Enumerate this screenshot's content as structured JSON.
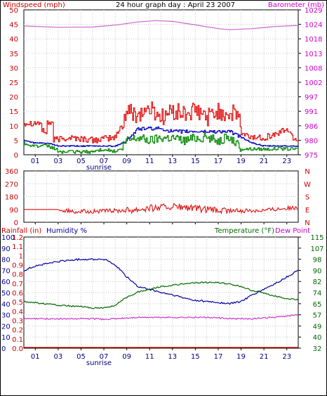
{
  "chart_data": [
    {
      "type": "line",
      "title": "24 hour graph day : April 23 2007",
      "x_ticks": [
        "01",
        "03",
        "05",
        "07",
        "09",
        "11",
        "13",
        "15",
        "17",
        "19",
        "21",
        "23"
      ],
      "x_annotation": "sunrise",
      "left_axis": {
        "label": "Windspeed (mph)",
        "range": [
          0,
          50
        ],
        "ticks": [
          "0",
          "5",
          "10",
          "15",
          "20",
          "25",
          "30",
          "35",
          "40",
          "45",
          "50"
        ]
      },
      "right_axis": {
        "label": "Barometer (mb)",
        "range": [
          975,
          1029
        ],
        "ticks": [
          "975",
          "980",
          "986",
          "991",
          "997",
          "1002",
          "1008",
          "1013",
          "1018",
          "1024",
          "1029"
        ]
      },
      "grid": true,
      "series": [
        {
          "color": "#cc66cc",
          "axis": "right",
          "x": [
            0,
            3,
            6,
            8,
            10,
            11.5,
            13,
            15,
            17,
            18,
            20,
            22,
            24
          ],
          "y": [
            1023,
            1022.5,
            1022.6,
            1023.3,
            1024.5,
            1025,
            1024.7,
            1023.4,
            1022,
            1021.6,
            1022,
            1022.8,
            1023.2
          ]
        },
        {
          "color": "#e01010",
          "axis": "left",
          "x": [
            0,
            1.5,
            1.5,
            2,
            2,
            2.5,
            2.5,
            4,
            6,
            8,
            8.5,
            9,
            10,
            11,
            12,
            13,
            14,
            15,
            16,
            17,
            18,
            18.8,
            19,
            20,
            21,
            22,
            23,
            23.5,
            24
          ],
          "y": [
            11,
            11,
            8,
            8,
            11,
            11,
            5,
            6,
            5,
            6,
            10,
            15,
            14,
            16,
            13,
            15,
            14,
            15,
            13,
            15,
            14,
            14,
            7,
            6,
            6,
            7,
            9,
            6,
            5
          ]
        },
        {
          "color": "#0000bb",
          "axis": "left",
          "x": [
            0,
            1,
            2,
            3,
            4,
            5,
            6,
            7,
            8,
            9,
            10,
            11,
            12,
            13,
            14,
            15,
            16,
            17,
            18,
            19,
            20,
            21,
            22,
            23,
            24
          ],
          "y": [
            5,
            4,
            4,
            3,
            3,
            3,
            3,
            3,
            3,
            5,
            9,
            9,
            9,
            8,
            8,
            8,
            8,
            8,
            8,
            6,
            4,
            3,
            3,
            3,
            3
          ]
        },
        {
          "color": "#008800",
          "axis": "left",
          "x": [
            0,
            1,
            2,
            2.8,
            3,
            4,
            5,
            6,
            7,
            8,
            8.5,
            9,
            10,
            11,
            12,
            13,
            14,
            15,
            16,
            17,
            18,
            19,
            20,
            21,
            22,
            23,
            24
          ],
          "y": [
            4,
            3,
            3,
            2,
            1,
            1,
            1,
            1,
            2,
            1,
            2,
            5,
            6,
            5,
            6,
            6,
            5,
            6,
            6,
            5,
            6,
            2,
            2,
            2,
            2,
            2,
            2
          ]
        }
      ]
    },
    {
      "type": "line",
      "left_axis": {
        "range": [
          0,
          360
        ],
        "ticks": [
          "0",
          "90",
          "180",
          "270",
          "360"
        ]
      },
      "right_axis": {
        "ticks": [
          "N",
          "E",
          "S",
          "W",
          "N"
        ]
      },
      "grid": true,
      "series": [
        {
          "color": "#e01010",
          "x": [
            0,
            3,
            3.2,
            5,
            7,
            9,
            11,
            13,
            15,
            17,
            19,
            21,
            23,
            24
          ],
          "y": [
            90,
            90,
            80,
            75,
            78,
            85,
            100,
            110,
            95,
            80,
            80,
            85,
            100,
            95
          ]
        }
      ]
    },
    {
      "type": "line",
      "labels": {
        "rainfall": "Rainfall (in)",
        "humidity": "Humidity %",
        "temperature": "Temperature (°F)",
        "dewpoint": "Dew Point"
      },
      "x_ticks": [
        "01",
        "03",
        "05",
        "07",
        "09",
        "11",
        "13",
        "15",
        "17",
        "19",
        "21",
        "23"
      ],
      "x_annotation": "sunrise",
      "rain_axis": {
        "range": [
          0,
          1.2
        ],
        "ticks": [
          "0.0",
          "0.1",
          "0.2",
          "0.3",
          "0.4",
          "0.5",
          "0.6",
          "0.7",
          "0.8",
          "0.9",
          "1",
          "1.1",
          "1.2"
        ]
      },
      "humidity_axis": {
        "range": [
          0,
          100
        ],
        "ticks": [
          "0",
          "10",
          "20",
          "30",
          "40",
          "50",
          "60",
          "70",
          "80",
          "90",
          "100"
        ]
      },
      "temp_axis": {
        "range": [
          32,
          115
        ],
        "ticks": [
          "32",
          "40",
          "49",
          "57",
          "65",
          "74",
          "82",
          "90",
          "98",
          "107",
          "115"
        ]
      },
      "grid": true,
      "series": [
        {
          "color": "#00009c",
          "axis": "humidity",
          "x": [
            0,
            0.5,
            1,
            2,
            3,
            4,
            5,
            6,
            7,
            7.5,
            8,
            8.5,
            9,
            9.5,
            10,
            11,
            12,
            13,
            14,
            15,
            16,
            17,
            18,
            19,
            20,
            21,
            22,
            23,
            24
          ],
          "y": [
            70,
            72,
            74,
            76,
            78,
            79,
            80,
            80,
            80,
            78,
            74,
            70,
            64,
            60,
            55,
            53,
            50,
            48,
            45,
            43,
            42,
            41,
            40,
            42,
            48,
            53,
            58,
            64,
            70
          ]
        },
        {
          "color": "#006600",
          "axis": "temp",
          "x": [
            0,
            1,
            3,
            5,
            6,
            7,
            8,
            9,
            10,
            11,
            12,
            13,
            14,
            15,
            16,
            17,
            18,
            19,
            20,
            21,
            22,
            23,
            24
          ],
          "y": [
            67,
            66,
            64,
            63,
            62,
            62,
            64,
            70,
            74,
            76,
            78,
            79,
            80,
            81,
            81,
            81,
            80,
            78,
            75,
            73,
            71,
            69,
            68
          ]
        },
        {
          "color": "#cc33cc",
          "axis": "temp",
          "x": [
            0,
            2,
            4,
            6,
            7,
            8,
            10,
            12,
            14,
            16,
            18,
            20,
            22,
            23,
            24
          ],
          "y": [
            54,
            54,
            54,
            54,
            53.5,
            54,
            55,
            55,
            55,
            55,
            54,
            54,
            55,
            56,
            57
          ]
        },
        {
          "color": "#cc0000",
          "axis": "rain",
          "x": [
            0,
            24
          ],
          "y": [
            0,
            0
          ]
        }
      ]
    }
  ]
}
